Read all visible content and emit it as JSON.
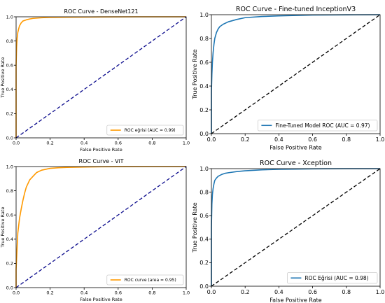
{
  "chart_data": [
    {
      "type": "line",
      "title": "ROC Curve - DenseNet121",
      "xlabel": "False Positive Rate",
      "ylabel": "True Positive Rate",
      "xlim": [
        0,
        1
      ],
      "ylim": [
        0,
        1
      ],
      "xticks": [
        "0.0",
        "0.2",
        "0.4",
        "0.6",
        "0.8",
        "1.0"
      ],
      "yticks": [
        "0.0",
        "0.2",
        "0.4",
        "0.6",
        "0.8",
        "1.0"
      ],
      "legend_position": "bottom-right",
      "series": [
        {
          "name": "ROC eğrisi (AUC = 0.99)",
          "color": "#ff9900",
          "x": [
            0,
            0.0,
            0.003,
            0.006,
            0.01,
            0.015,
            0.02,
            0.03,
            0.04,
            0.06,
            0.08,
            0.1,
            0.15,
            0.2,
            0.3,
            0.5,
            0.7,
            1.0
          ],
          "y": [
            0,
            0.6,
            0.75,
            0.82,
            0.87,
            0.9,
            0.925,
            0.95,
            0.965,
            0.975,
            0.982,
            0.987,
            0.992,
            0.995,
            0.997,
            0.999,
            1.0,
            1.0
          ]
        },
        {
          "name": "",
          "color": "#0a0a8c",
          "dashed": true,
          "x": [
            0,
            1
          ],
          "y": [
            0,
            1
          ]
        }
      ]
    },
    {
      "type": "line",
      "title": "ROC Curve - Fine-tuned InceptionV3",
      "xlabel": "False Positive Rate",
      "ylabel": "True Positive Rate",
      "xlim": [
        0,
        1
      ],
      "ylim": [
        0,
        1
      ],
      "xticks": [
        "0.0",
        "0.2",
        "0.4",
        "0.6",
        "0.8",
        "1.0"
      ],
      "yticks": [
        "0.0",
        "0.2",
        "0.4",
        "0.6",
        "0.8",
        "1.0"
      ],
      "legend_position": "bottom-right",
      "series": [
        {
          "name": "Fine-Tuned Model ROC (AUC = 0.97)",
          "color": "#1f77b4",
          "x": [
            0,
            0.0,
            0.003,
            0.006,
            0.01,
            0.015,
            0.02,
            0.03,
            0.04,
            0.05,
            0.07,
            0.1,
            0.15,
            0.2,
            0.3,
            0.4,
            0.5,
            0.6,
            0.8,
            1.0
          ],
          "y": [
            0,
            0.35,
            0.5,
            0.6,
            0.68,
            0.75,
            0.8,
            0.85,
            0.88,
            0.9,
            0.92,
            0.94,
            0.96,
            0.975,
            0.985,
            0.99,
            0.994,
            0.997,
            0.999,
            1.0
          ]
        },
        {
          "name": "",
          "color": "#000000",
          "dashed": true,
          "x": [
            0,
            1
          ],
          "y": [
            0,
            1
          ]
        }
      ]
    },
    {
      "type": "line",
      "title": "ROC Curve - ViT",
      "xlabel": "False Positive Rate",
      "ylabel": "True Positive Rate",
      "xlim": [
        0,
        1
      ],
      "ylim": [
        0,
        1
      ],
      "xticks": [
        "0.0",
        "0.2",
        "0.4",
        "0.6",
        "0.8",
        "1.0"
      ],
      "yticks": [
        "0.0",
        "0.2",
        "0.4",
        "0.6",
        "0.8",
        "1.0"
      ],
      "legend_position": "bottom-right",
      "series": [
        {
          "name": "ROC curve (area = 0.95)",
          "color": "#ff9900",
          "x": [
            0,
            0.0,
            0.005,
            0.01,
            0.02,
            0.03,
            0.04,
            0.05,
            0.06,
            0.08,
            0.1,
            0.12,
            0.15,
            0.2,
            0.25,
            0.3,
            0.4,
            0.5,
            0.6,
            0.8,
            1.0
          ],
          "y": [
            0,
            0.15,
            0.3,
            0.45,
            0.57,
            0.65,
            0.72,
            0.78,
            0.83,
            0.89,
            0.92,
            0.95,
            0.97,
            0.985,
            0.99,
            0.993,
            0.996,
            0.998,
            0.999,
            1.0,
            1.0
          ]
        },
        {
          "name": "",
          "color": "#0a0a8c",
          "dashed": true,
          "x": [
            0,
            1
          ],
          "y": [
            0,
            1
          ]
        }
      ]
    },
    {
      "type": "line",
      "title": "ROC Curve - Xception",
      "xlabel": "False Positive Rate",
      "ylabel": "True Positive Rate",
      "xlim": [
        0,
        1
      ],
      "ylim": [
        0,
        1
      ],
      "xticks": [
        "0.0",
        "0.2",
        "0.4",
        "0.6",
        "0.8",
        "1.0"
      ],
      "yticks": [
        "0.0",
        "0.2",
        "0.4",
        "0.6",
        "0.8",
        "1.0"
      ],
      "legend_position": "bottom-right",
      "series": [
        {
          "name": "ROC Eğrisi (AUC = 0.98)",
          "color": "#1f77b4",
          "x": [
            0,
            0.0,
            0.003,
            0.006,
            0.01,
            0.015,
            0.02,
            0.03,
            0.04,
            0.06,
            0.08,
            0.1,
            0.15,
            0.2,
            0.3,
            0.4,
            0.6,
            0.8,
            1.0
          ],
          "y": [
            0,
            0.5,
            0.7,
            0.78,
            0.83,
            0.87,
            0.9,
            0.92,
            0.935,
            0.95,
            0.96,
            0.965,
            0.975,
            0.982,
            0.99,
            0.994,
            0.998,
            1.0,
            1.0
          ]
        },
        {
          "name": "",
          "color": "#000000",
          "dashed": true,
          "x": [
            0,
            1
          ],
          "y": [
            0,
            1
          ]
        }
      ]
    }
  ]
}
